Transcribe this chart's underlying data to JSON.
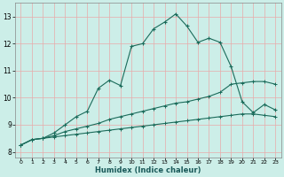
{
  "xlabel": "Humidex (Indice chaleur)",
  "bg_color": "#cceee8",
  "grid_color": "#e8aaaa",
  "line_color": "#1a6b5a",
  "xlim": [
    -0.5,
    23.5
  ],
  "ylim": [
    7.8,
    13.5
  ],
  "xticks": [
    0,
    1,
    2,
    3,
    4,
    5,
    6,
    7,
    8,
    9,
    10,
    11,
    12,
    13,
    14,
    15,
    16,
    17,
    18,
    19,
    20,
    21,
    22,
    23
  ],
  "yticks": [
    8,
    9,
    10,
    11,
    12,
    13
  ],
  "line1_x": [
    0,
    1,
    2,
    3,
    4,
    5,
    6,
    7,
    8,
    9,
    10,
    11,
    12,
    13,
    14,
    15,
    16,
    17,
    18,
    19,
    20,
    21,
    22,
    23
  ],
  "line1_y": [
    8.25,
    8.45,
    8.5,
    8.55,
    8.6,
    8.65,
    8.7,
    8.75,
    8.8,
    8.85,
    8.9,
    8.95,
    9.0,
    9.05,
    9.1,
    9.15,
    9.2,
    9.25,
    9.3,
    9.35,
    9.4,
    9.4,
    9.35,
    9.3
  ],
  "line2_x": [
    0,
    1,
    2,
    3,
    4,
    5,
    6,
    7,
    8,
    9,
    10,
    11,
    12,
    13,
    14,
    15,
    16,
    17,
    18,
    19,
    20,
    21,
    22,
    23
  ],
  "line2_y": [
    8.25,
    8.45,
    8.5,
    8.6,
    8.75,
    8.85,
    8.95,
    9.05,
    9.2,
    9.3,
    9.4,
    9.5,
    9.6,
    9.7,
    9.8,
    9.85,
    9.95,
    10.05,
    10.2,
    10.5,
    10.55,
    10.6,
    10.6,
    10.5
  ],
  "line3_x": [
    0,
    1,
    2,
    3,
    4,
    5,
    6,
    7,
    8,
    9,
    10,
    11,
    12,
    13,
    14,
    15,
    16,
    17,
    18,
    19,
    20,
    21,
    22,
    23
  ],
  "line3_y": [
    8.25,
    8.45,
    8.5,
    8.7,
    9.0,
    9.3,
    9.5,
    10.35,
    10.65,
    10.45,
    11.9,
    12.0,
    12.55,
    12.8,
    13.1,
    12.65,
    12.05,
    12.2,
    12.05,
    11.15,
    9.85,
    9.45,
    9.75,
    9.55
  ]
}
